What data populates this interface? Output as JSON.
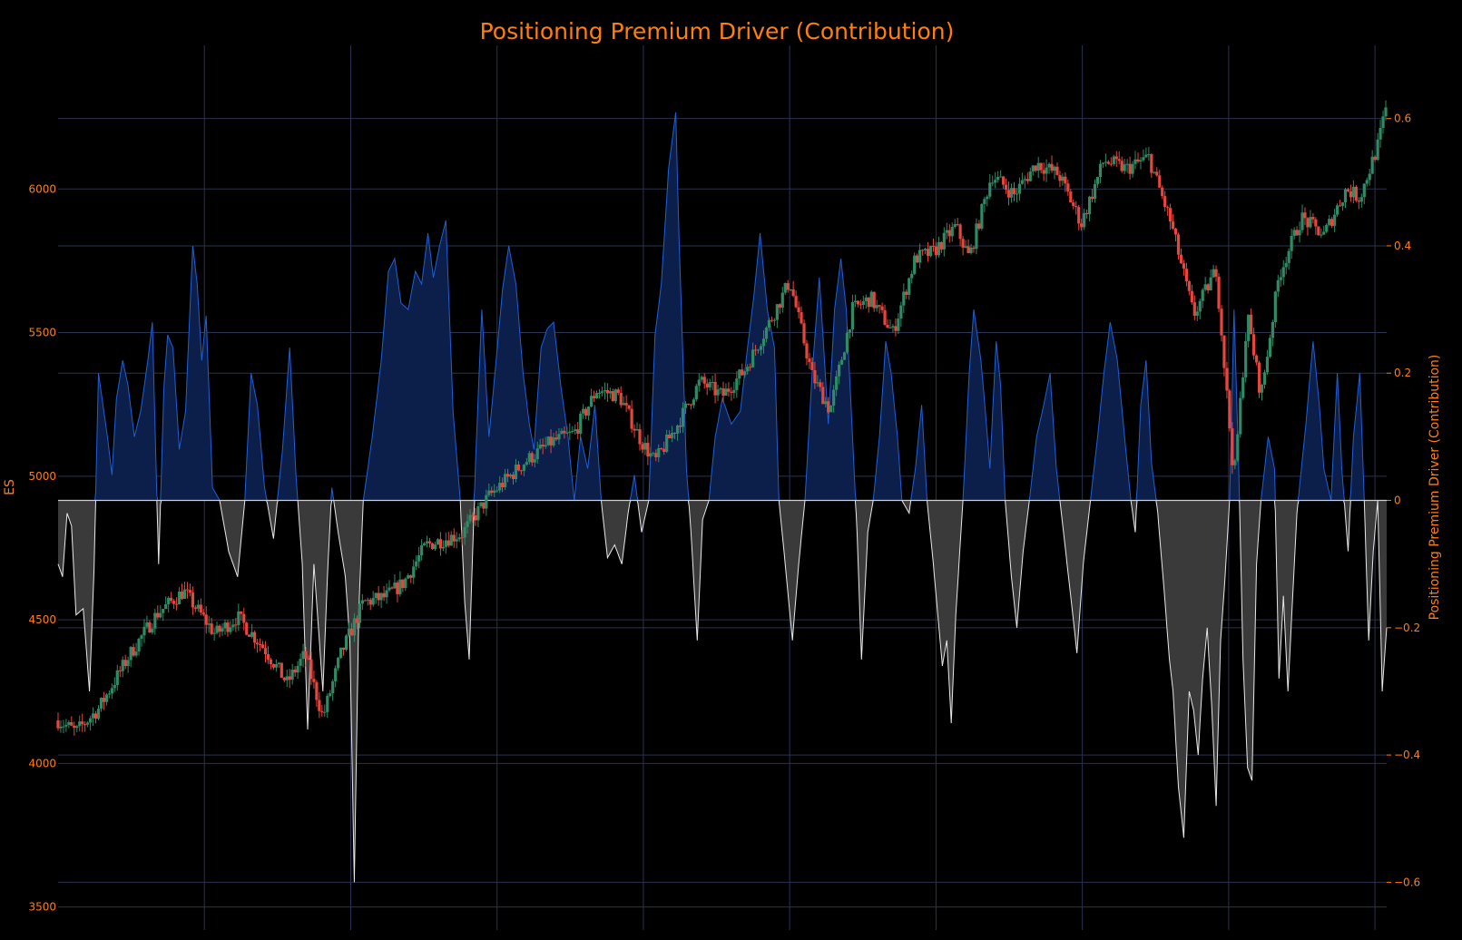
{
  "chart_data": {
    "type": "candlestick-with-area",
    "title": "Positioning Premium Driver (Contribution)",
    "left_axis": {
      "label": "ES",
      "range": [
        3420,
        6500
      ],
      "ticks": [
        3500,
        4000,
        4500,
        5000,
        5500,
        6000
      ],
      "tick_labels": [
        "3500",
        "4000",
        "4500",
        "5000",
        "5500",
        "6000"
      ]
    },
    "right_axis": {
      "label": "Positioning Premium Driver (Contribution)",
      "range": [
        -0.675,
        0.715
      ],
      "ticks": [
        -0.6,
        -0.4,
        -0.2,
        0,
        0.2,
        0.4,
        0.6
      ],
      "tick_labels": [
        "−0.6",
        "−0.4",
        "−0.2",
        "0",
        "0.2",
        "0.4",
        "0.6"
      ]
    },
    "x_gridlines": 9,
    "grid": true,
    "colors": {
      "background": "#000000",
      "text": "#ff7f0e",
      "grid": "#2a3350",
      "candle_up": "#2e8b66",
      "candle_down": "#e8453c",
      "positive_line": "#1f5fd6",
      "positive_fill": "#0b1f4a",
      "negative_line": "#e8e8e8",
      "negative_fill": "#3a3a3a",
      "zero_line": "#d0d0d0"
    },
    "price_anchors": [
      [
        0,
        4150
      ],
      [
        20,
        4110
      ],
      [
        45,
        4190
      ],
      [
        80,
        4380
      ],
      [
        110,
        4520
      ],
      [
        140,
        4600
      ],
      [
        175,
        4450
      ],
      [
        200,
        4510
      ],
      [
        230,
        4400
      ],
      [
        255,
        4280
      ],
      [
        275,
        4380
      ],
      [
        295,
        4160
      ],
      [
        315,
        4380
      ],
      [
        340,
        4560
      ],
      [
        365,
        4580
      ],
      [
        385,
        4630
      ],
      [
        410,
        4760
      ],
      [
        450,
        4800
      ],
      [
        480,
        4930
      ],
      [
        520,
        5050
      ],
      [
        550,
        5120
      ],
      [
        575,
        5150
      ],
      [
        600,
        5300
      ],
      [
        625,
        5280
      ],
      [
        650,
        5120
      ],
      [
        665,
        5050
      ],
      [
        690,
        5180
      ],
      [
        715,
        5330
      ],
      [
        740,
        5280
      ],
      [
        765,
        5370
      ],
      [
        790,
        5520
      ],
      [
        815,
        5680
      ],
      [
        840,
        5350
      ],
      [
        860,
        5230
      ],
      [
        885,
        5580
      ],
      [
        905,
        5620
      ],
      [
        930,
        5500
      ],
      [
        955,
        5760
      ],
      [
        975,
        5780
      ],
      [
        1000,
        5870
      ],
      [
        1015,
        5760
      ],
      [
        1040,
        6050
      ],
      [
        1065,
        5980
      ],
      [
        1090,
        6090
      ],
      [
        1115,
        6050
      ],
      [
        1140,
        5880
      ],
      [
        1165,
        6100
      ],
      [
        1190,
        6070
      ],
      [
        1215,
        6110
      ],
      [
        1240,
        5880
      ],
      [
        1265,
        5560
      ],
      [
        1290,
        5720
      ],
      [
        1310,
        4990
      ],
      [
        1325,
        5560
      ],
      [
        1340,
        5280
      ],
      [
        1360,
        5700
      ],
      [
        1385,
        5900
      ],
      [
        1410,
        5840
      ],
      [
        1435,
        6000
      ],
      [
        1450,
        5970
      ],
      [
        1470,
        6150
      ],
      [
        1480,
        6290
      ]
    ],
    "contribution_anchors": [
      [
        0,
        -0.1
      ],
      [
        5,
        -0.12
      ],
      [
        10,
        -0.02
      ],
      [
        15,
        -0.04
      ],
      [
        20,
        -0.18
      ],
      [
        28,
        -0.17
      ],
      [
        35,
        -0.3
      ],
      [
        40,
        -0.11
      ],
      [
        45,
        0.2
      ],
      [
        55,
        0.1
      ],
      [
        60,
        0.04
      ],
      [
        65,
        0.16
      ],
      [
        72,
        0.22
      ],
      [
        78,
        0.18
      ],
      [
        85,
        0.1
      ],
      [
        92,
        0.14
      ],
      [
        100,
        0.22
      ],
      [
        105,
        0.28
      ],
      [
        112,
        -0.1
      ],
      [
        118,
        0.18
      ],
      [
        122,
        0.26
      ],
      [
        128,
        0.24
      ],
      [
        135,
        0.08
      ],
      [
        142,
        0.14
      ],
      [
        150,
        0.4
      ],
      [
        155,
        0.34
      ],
      [
        160,
        0.22
      ],
      [
        165,
        0.29
      ],
      [
        172,
        0.02
      ],
      [
        180,
        0.0
      ],
      [
        190,
        -0.08
      ],
      [
        200,
        -0.12
      ],
      [
        208,
        0.0
      ],
      [
        215,
        0.2
      ],
      [
        222,
        0.15
      ],
      [
        230,
        0.02
      ],
      [
        240,
        -0.06
      ],
      [
        250,
        0.08
      ],
      [
        258,
        0.24
      ],
      [
        265,
        0.04
      ],
      [
        272,
        -0.1
      ],
      [
        278,
        -0.36
      ],
      [
        285,
        -0.1
      ],
      [
        290,
        -0.2
      ],
      [
        295,
        -0.3
      ],
      [
        300,
        -0.12
      ],
      [
        305,
        0.02
      ],
      [
        312,
        -0.05
      ],
      [
        320,
        -0.12
      ],
      [
        325,
        -0.22
      ],
      [
        330,
        -0.6
      ],
      [
        335,
        -0.17
      ],
      [
        340,
        0.0
      ],
      [
        350,
        0.1
      ],
      [
        360,
        0.22
      ],
      [
        368,
        0.36
      ],
      [
        375,
        0.38
      ],
      [
        382,
        0.31
      ],
      [
        390,
        0.3
      ],
      [
        398,
        0.36
      ],
      [
        405,
        0.34
      ],
      [
        412,
        0.42
      ],
      [
        418,
        0.35
      ],
      [
        425,
        0.4
      ],
      [
        432,
        0.44
      ],
      [
        440,
        0.14
      ],
      [
        448,
        0.0
      ],
      [
        453,
        -0.16
      ],
      [
        458,
        -0.25
      ],
      [
        465,
        0.06
      ],
      [
        472,
        0.3
      ],
      [
        480,
        0.1
      ],
      [
        488,
        0.22
      ],
      [
        495,
        0.33
      ],
      [
        502,
        0.4
      ],
      [
        510,
        0.34
      ],
      [
        518,
        0.2
      ],
      [
        525,
        0.12
      ],
      [
        530,
        0.08
      ],
      [
        538,
        0.24
      ],
      [
        545,
        0.27
      ],
      [
        552,
        0.28
      ],
      [
        560,
        0.18
      ],
      [
        568,
        0.1
      ],
      [
        575,
        0.0
      ],
      [
        582,
        0.1
      ],
      [
        590,
        0.05
      ],
      [
        598,
        0.15
      ],
      [
        605,
        0.0
      ],
      [
        612,
        -0.09
      ],
      [
        620,
        -0.07
      ],
      [
        628,
        -0.1
      ],
      [
        635,
        -0.02
      ],
      [
        642,
        0.04
      ],
      [
        650,
        -0.05
      ],
      [
        658,
        0.0
      ],
      [
        665,
        0.26
      ],
      [
        672,
        0.34
      ],
      [
        680,
        0.52
      ],
      [
        688,
        0.61
      ],
      [
        692,
        0.4
      ],
      [
        700,
        0.05
      ],
      [
        705,
        -0.05
      ],
      [
        712,
        -0.22
      ],
      [
        718,
        -0.03
      ],
      [
        725,
        0.0
      ],
      [
        732,
        0.1
      ],
      [
        740,
        0.16
      ],
      [
        750,
        0.12
      ],
      [
        760,
        0.14
      ],
      [
        768,
        0.24
      ],
      [
        775,
        0.32
      ],
      [
        782,
        0.42
      ],
      [
        790,
        0.3
      ],
      [
        798,
        0.24
      ],
      [
        803,
        0.0
      ],
      [
        810,
        -0.1
      ],
      [
        818,
        -0.22
      ],
      [
        825,
        -0.1
      ],
      [
        832,
        0.0
      ],
      [
        840,
        0.2
      ],
      [
        848,
        0.35
      ],
      [
        852,
        0.26
      ],
      [
        858,
        0.12
      ],
      [
        865,
        0.3
      ],
      [
        872,
        0.38
      ],
      [
        878,
        0.3
      ],
      [
        885,
        0.1
      ],
      [
        890,
        -0.05
      ],
      [
        895,
        -0.25
      ],
      [
        902,
        -0.05
      ],
      [
        908,
        0.0
      ],
      [
        915,
        0.1
      ],
      [
        922,
        0.25
      ],
      [
        928,
        0.2
      ],
      [
        935,
        0.1
      ],
      [
        940,
        0.0
      ],
      [
        948,
        -0.02
      ],
      [
        955,
        0.05
      ],
      [
        962,
        0.15
      ],
      [
        968,
        0.0
      ],
      [
        975,
        -0.1
      ],
      [
        980,
        -0.18
      ],
      [
        985,
        -0.26
      ],
      [
        990,
        -0.22
      ],
      [
        995,
        -0.35
      ],
      [
        1000,
        -0.18
      ],
      [
        1008,
        0.0
      ],
      [
        1015,
        0.2
      ],
      [
        1020,
        0.3
      ],
      [
        1028,
        0.22
      ],
      [
        1033,
        0.14
      ],
      [
        1038,
        0.05
      ],
      [
        1045,
        0.25
      ],
      [
        1050,
        0.18
      ],
      [
        1055,
        0.0
      ],
      [
        1062,
        -0.12
      ],
      [
        1068,
        -0.2
      ],
      [
        1075,
        -0.08
      ],
      [
        1082,
        0.0
      ],
      [
        1090,
        0.1
      ],
      [
        1098,
        0.15
      ],
      [
        1105,
        0.2
      ],
      [
        1112,
        0.05
      ],
      [
        1120,
        -0.05
      ],
      [
        1128,
        -0.15
      ],
      [
        1135,
        -0.24
      ],
      [
        1142,
        -0.1
      ],
      [
        1150,
        0.0
      ],
      [
        1158,
        0.1
      ],
      [
        1165,
        0.2
      ],
      [
        1172,
        0.28
      ],
      [
        1180,
        0.22
      ],
      [
        1188,
        0.1
      ],
      [
        1195,
        0.0
      ],
      [
        1200,
        -0.05
      ],
      [
        1206,
        0.15
      ],
      [
        1212,
        0.22
      ],
      [
        1218,
        0.06
      ],
      [
        1225,
        -0.02
      ],
      [
        1232,
        -0.14
      ],
      [
        1238,
        -0.25
      ],
      [
        1242,
        -0.3
      ],
      [
        1248,
        -0.45
      ],
      [
        1254,
        -0.53
      ],
      [
        1260,
        -0.3
      ],
      [
        1265,
        -0.33
      ],
      [
        1270,
        -0.4
      ],
      [
        1275,
        -0.28
      ],
      [
        1280,
        -0.2
      ],
      [
        1285,
        -0.32
      ],
      [
        1290,
        -0.48
      ],
      [
        1295,
        -0.22
      ],
      [
        1300,
        -0.12
      ],
      [
        1305,
        0.0
      ],
      [
        1310,
        0.3
      ],
      [
        1315,
        0.06
      ],
      [
        1320,
        -0.25
      ],
      [
        1325,
        -0.42
      ],
      [
        1330,
        -0.44
      ],
      [
        1335,
        -0.1
      ],
      [
        1340,
        0.0
      ],
      [
        1348,
        0.1
      ],
      [
        1355,
        0.05
      ],
      [
        1360,
        -0.28
      ],
      [
        1365,
        -0.15
      ],
      [
        1370,
        -0.3
      ],
      [
        1375,
        -0.16
      ],
      [
        1380,
        -0.02
      ],
      [
        1385,
        0.05
      ],
      [
        1390,
        0.12
      ],
      [
        1398,
        0.25
      ],
      [
        1405,
        0.15
      ],
      [
        1410,
        0.05
      ],
      [
        1418,
        0.0
      ],
      [
        1425,
        0.2
      ],
      [
        1430,
        0.05
      ],
      [
        1437,
        -0.08
      ],
      [
        1443,
        0.1
      ],
      [
        1450,
        0.2
      ],
      [
        1455,
        0.0
      ],
      [
        1460,
        -0.22
      ],
      [
        1465,
        -0.08
      ],
      [
        1470,
        0.0
      ],
      [
        1475,
        -0.3
      ],
      [
        1480,
        -0.2
      ]
    ]
  }
}
